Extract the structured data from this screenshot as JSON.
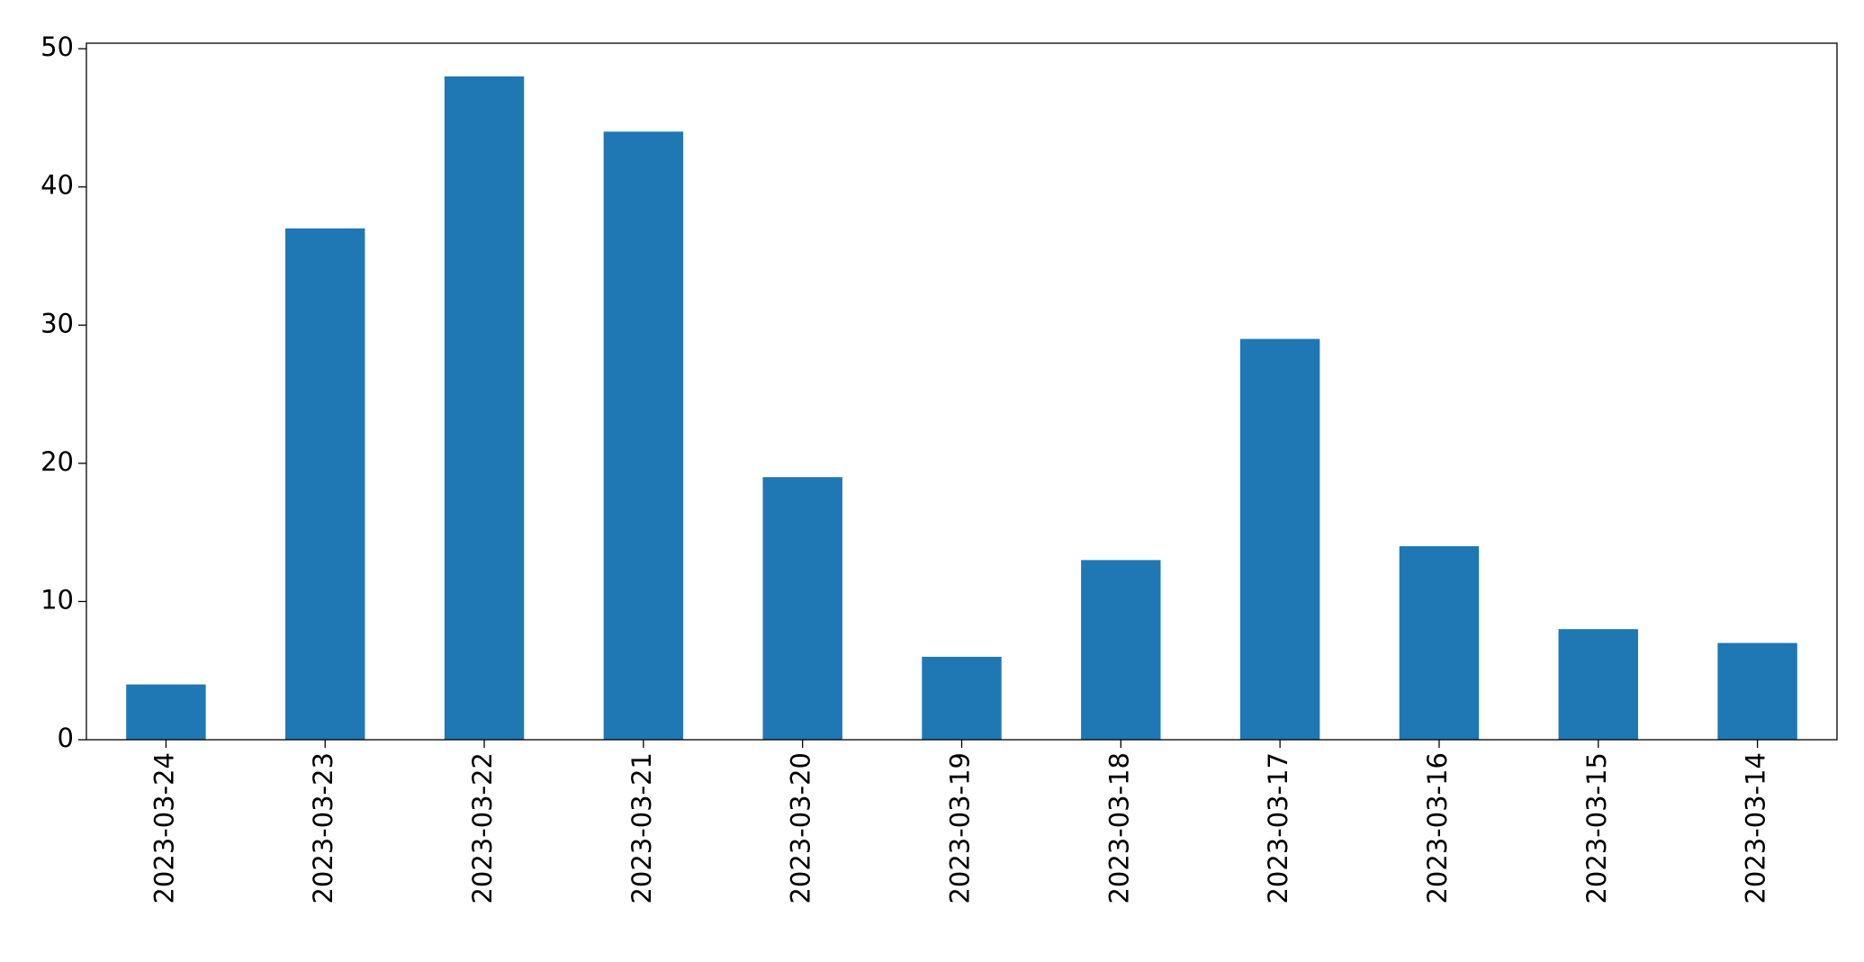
{
  "chart_data": {
    "type": "bar",
    "categories": [
      "2023-03-24",
      "2023-03-23",
      "2023-03-22",
      "2023-03-21",
      "2023-03-20",
      "2023-03-19",
      "2023-03-18",
      "2023-03-17",
      "2023-03-16",
      "2023-03-15",
      "2023-03-14"
    ],
    "values": [
      4,
      37,
      48,
      44,
      19,
      6,
      13,
      29,
      14,
      8,
      7
    ],
    "color": "#1f77b4",
    "ylim": [
      0,
      50.4
    ],
    "yticks": [
      0,
      10,
      20,
      30,
      40,
      50
    ],
    "grid": false
  }
}
